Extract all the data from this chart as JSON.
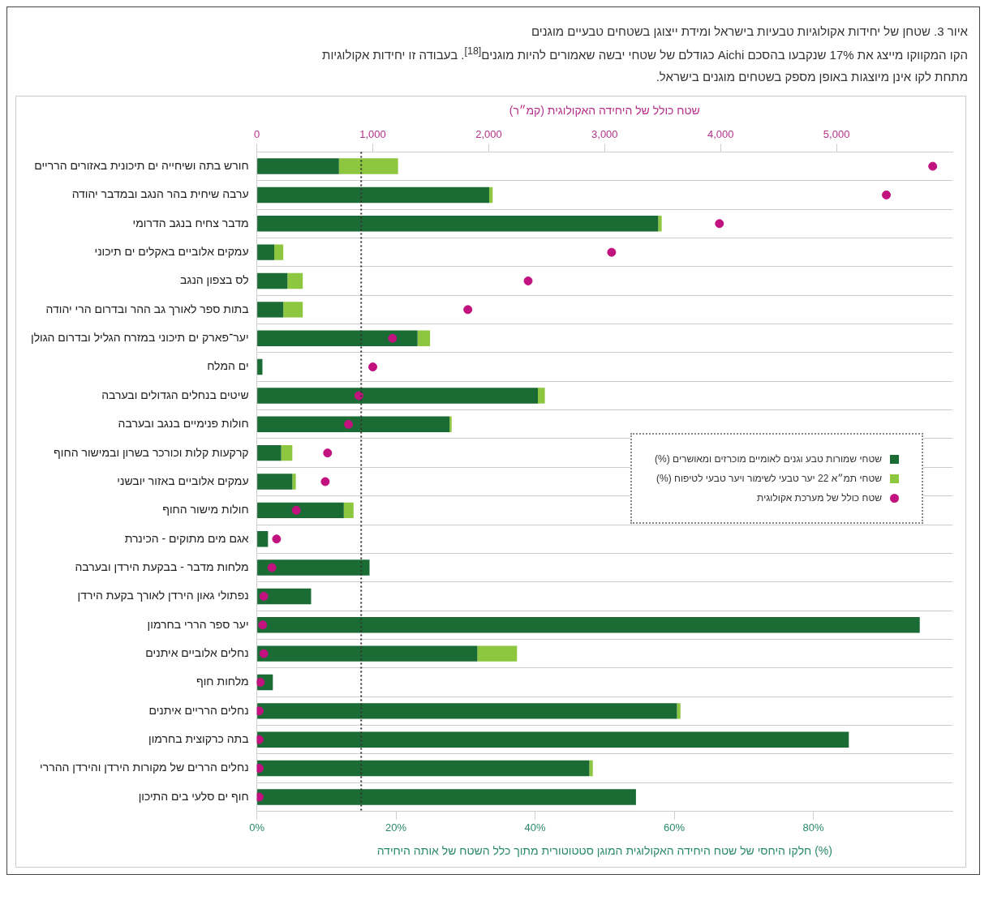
{
  "chart_data": {
    "type": "bar",
    "orientation": "horizontal",
    "stacked": true,
    "title": "איור 3. שטחן של יחידות אקולוגיות טבעיות בישראל ומידת ייצוגן בשטחים טבעיים מוגנים",
    "subtitle": "הקו המקווקו מייצג את 17% שנקבעו בהסכם Aichi כגודלם של שטחי יבשה שאמורים להיות מוגנים$^{[18]}$. בעבודה זו יחידות אקולוגיות מתחת לקו אינן מיוצגות באופן מספק בשטחים מוגנים בישראל.",
    "xlabel": "חלקו היחסי של שטח היחידה האקולוגית המוגן סטטוטורית מתוך כלל השטח של אותה היחידה (%)",
    "x2label": "שטח כולל של היחידה האקולוגית (קמ״ר)",
    "categories": [
      "חורש בתה ושיחייה ים תיכונית באזורים הרריים",
      "ערבה שיחית בהר הנגב ובמדבר יהודה",
      "מדבר צחיח בנגב הדרומי",
      "עמקים אלוביים באקלים ים תיכוני",
      "לס בצפון הנגב",
      "בתות ספר לאורך גב ההר ובדרום הרי יהודה",
      "יער־פארק ים תיכוני במזרח הגליל ובדרום הגולן",
      "ים המלח",
      "שיטים בנחלים הגדולים ובערבה",
      "חולות פנימיים בנגב ובערבה",
      "קרקעות קלות וכורכר בשרון ובמישור החוף",
      "עמקים אלוביים באזור יובשני",
      "חולות מישור החוף",
      "אגם מים מתוקים - הכינרת",
      "מלחות מדבר - בבקעת הירדן ובערבה",
      "נפתולי גאון הירדן לאורך בקעת הירדן",
      "יער ספר הררי בחרמון",
      "נחלים אלוביים איתנים",
      "מלחות חוף",
      "נחלים הרריים איתנים",
      "בתה כרקוצית בחרמון",
      "נחלים הררים של מקורות הירדן והירדן ההררי",
      "חוף ים סלעי בים התיכון"
    ],
    "series": [
      {
        "name": "שטחי שמורות טבע וגנים לאומיים מוכרזים ומאושרים (%)",
        "color": "#1b6b35",
        "values": [
          11.8,
          33.4,
          57.7,
          2.5,
          4.4,
          3.8,
          23.1,
          0.8,
          40.4,
          27.7,
          3.5,
          5.1,
          12.5,
          1.6,
          16.2,
          7.8,
          95.3,
          31.7,
          2.3,
          60.4,
          85.1,
          47.8,
          54.5
        ]
      },
      {
        "name": "שטחי תמ״א 22 יער טבעי לשימור ויער טבעי לטיפוח (%)",
        "color": "#8dc63f",
        "values": [
          8.5,
          0.5,
          0.5,
          1.3,
          2.2,
          2.8,
          1.8,
          null,
          1.0,
          0.3,
          1.6,
          0.5,
          1.4,
          null,
          null,
          null,
          null,
          5.7,
          null,
          0.5,
          null,
          0.5,
          null
        ]
      },
      {
        "name": "שטח כולל של מערכת אקולוגית",
        "type": "scatter",
        "axis": "x2",
        "marker": "circle",
        "color": "#c2127f",
        "values": [
          5830,
          5430,
          3990,
          3060,
          2340,
          1820,
          1170,
          1000,
          880,
          790,
          610,
          590,
          340,
          170,
          130,
          60,
          50,
          60,
          30,
          20,
          20,
          20,
          20
        ]
      }
    ],
    "xlim": [
      0,
      100
    ],
    "xticks": [
      {
        "value": 0,
        "label": "0%"
      },
      {
        "value": 20,
        "label": "20%"
      },
      {
        "value": 40,
        "label": "40%"
      },
      {
        "value": 60,
        "label": "60%"
      },
      {
        "value": 80,
        "label": "80%"
      }
    ],
    "x2lim": [
      0,
      6000
    ],
    "x2ticks": [
      0,
      {
        "value": 1000,
        "label": "1,000"
      },
      {
        "value": 2000,
        "label": "2,000"
      },
      {
        "value": 3000,
        "label": "3,000"
      },
      {
        "value": 4000,
        "label": "4,000"
      },
      {
        "value": 5000,
        "label": "5,000"
      }
    ],
    "ref_lines": [
      {
        "axis": "x",
        "value": 15,
        "line_style": "dotted",
        "color": "#333333"
      }
    ],
    "grid": "y",
    "legend": "right"
  }
}
